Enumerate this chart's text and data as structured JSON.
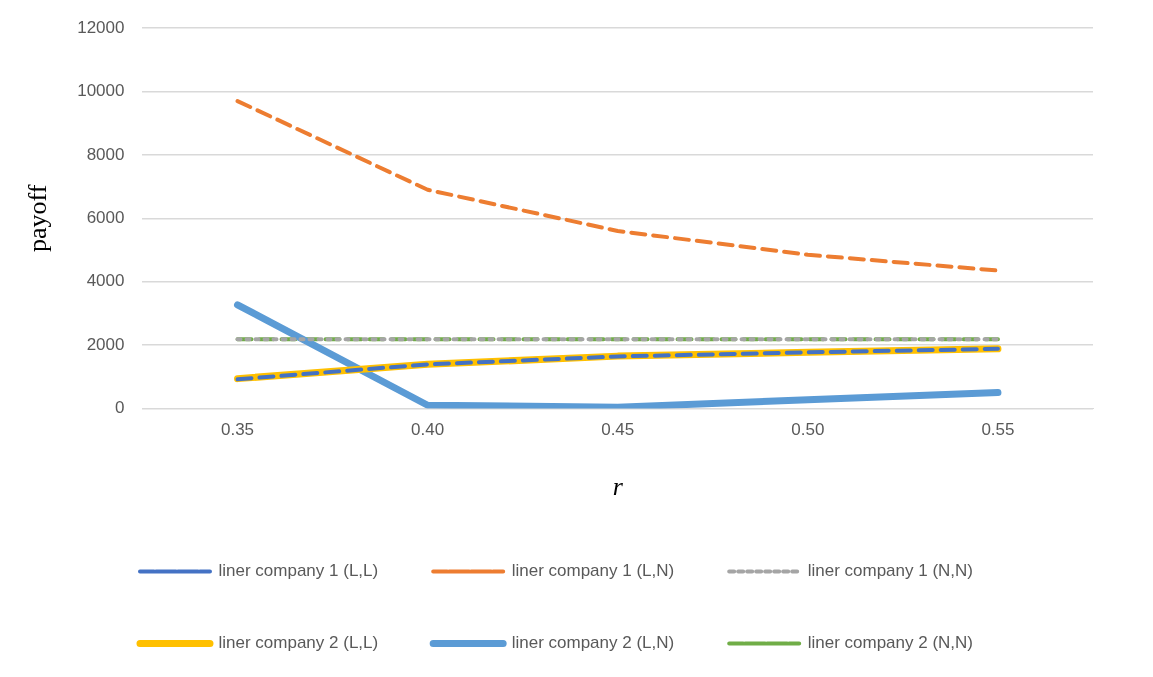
{
  "chart_data": {
    "type": "line",
    "xlabel": "r",
    "ylabel": "payoff",
    "categories": [
      "0.35",
      "0.40",
      "0.45",
      "0.50",
      "0.55"
    ],
    "ylim": [
      0,
      12000
    ],
    "yticks": [
      0,
      2000,
      4000,
      6000,
      8000,
      10000,
      12000
    ],
    "grid": "y",
    "legend": "bottom",
    "marker": "none",
    "series": [
      {
        "name": "liner company 1 (L,L)",
        "color": "#4472c4",
        "line_style": "dashed",
        "values": [
          920,
          1390,
          1640,
          1770,
          1880
        ]
      },
      {
        "name": "liner company 1 (L,N)",
        "color": "#ed7d31",
        "line_style": "dashed",
        "values": [
          9700,
          6900,
          5600,
          4850,
          4350
        ]
      },
      {
        "name": "liner company 1 (N,N)",
        "color": "#a5a5a5",
        "line_style": "dotted",
        "values": [
          2180,
          2180,
          2180,
          2180,
          2180
        ]
      },
      {
        "name": "liner company 2 (L,L)",
        "color": "#ffc000",
        "line_style": "solid",
        "values": [
          940,
          1390,
          1650,
          1770,
          1880
        ]
      },
      {
        "name": "liner company 2 (L,N)",
        "color": "#5b9bd5",
        "line_style": "solid",
        "values": [
          3270,
          100,
          40,
          270,
          500
        ]
      },
      {
        "name": "liner company 2 (N,N)",
        "color": "#70ad47",
        "line_style": "dashed",
        "values": [
          2180,
          2180,
          2180,
          2180,
          2180
        ]
      }
    ]
  }
}
